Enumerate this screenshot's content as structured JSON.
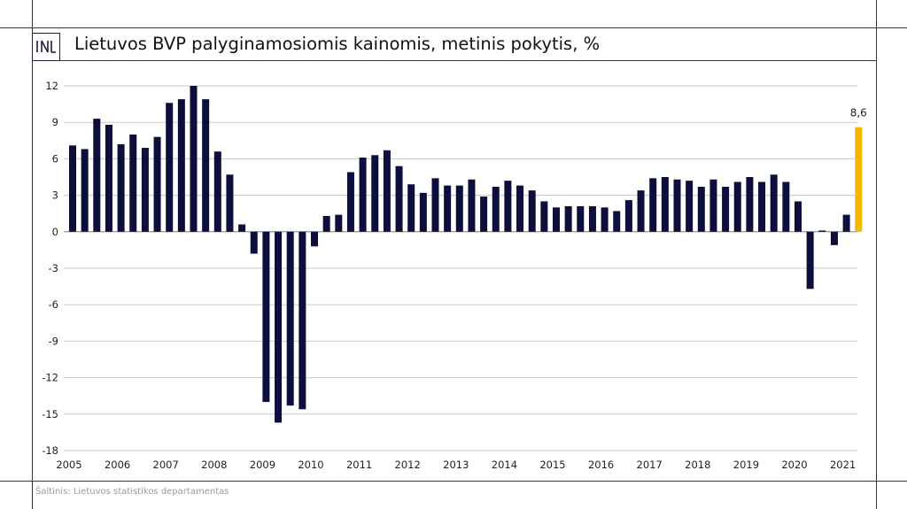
{
  "header": {
    "title": "Lietuvos BVP palyginamosiomis kainomis, metinis pokytis, %"
  },
  "footer": {
    "source": "Šaltinis: Lietuvos statistikos departamentas"
  },
  "colors": {
    "bar": "#0c0f3b",
    "highlight": "#f5b800",
    "grid": "#c8c8c8",
    "frame": "#3a3a3a"
  },
  "chart_data": {
    "type": "bar",
    "title": "Lietuvos BVP palyginamosiomis kainomis, metinis pokytis, %",
    "ylim": [
      -18,
      12
    ],
    "yticks": [
      12,
      9,
      6,
      3,
      0,
      -3,
      -6,
      -9,
      -12,
      -15,
      -18
    ],
    "grid": true,
    "year_labels": [
      "2005",
      "2006",
      "2007",
      "2008",
      "2009",
      "2010",
      "2011",
      "2012",
      "2013",
      "2014",
      "2015",
      "2016",
      "2017",
      "2018",
      "2019",
      "2020",
      "2021"
    ],
    "categories": [
      "2005 Q1",
      "2005 Q2",
      "2005 Q3",
      "2005 Q4",
      "2006 Q1",
      "2006 Q2",
      "2006 Q3",
      "2006 Q4",
      "2007 Q1",
      "2007 Q2",
      "2007 Q3",
      "2007 Q4",
      "2008 Q1",
      "2008 Q2",
      "2008 Q3",
      "2008 Q4",
      "2009 Q1",
      "2009 Q2",
      "2009 Q3",
      "2009 Q4",
      "2010 Q1",
      "2010 Q2",
      "2010 Q3",
      "2010 Q4",
      "2011 Q1",
      "2011 Q2",
      "2011 Q3",
      "2011 Q4",
      "2012 Q1",
      "2012 Q2",
      "2012 Q3",
      "2012 Q4",
      "2013 Q1",
      "2013 Q2",
      "2013 Q3",
      "2013 Q4",
      "2014 Q1",
      "2014 Q2",
      "2014 Q3",
      "2014 Q4",
      "2015 Q1",
      "2015 Q2",
      "2015 Q3",
      "2015 Q4",
      "2016 Q1",
      "2016 Q2",
      "2016 Q3",
      "2016 Q4",
      "2017 Q1",
      "2017 Q2",
      "2017 Q3",
      "2017 Q4",
      "2018 Q1",
      "2018 Q2",
      "2018 Q3",
      "2018 Q4",
      "2019 Q1",
      "2019 Q2",
      "2019 Q3",
      "2019 Q4",
      "2020 Q1",
      "2020 Q2",
      "2020 Q3",
      "2020 Q4",
      "2021 Q1",
      "2021 Q2"
    ],
    "values": [
      7.1,
      6.8,
      9.3,
      8.8,
      7.2,
      8.0,
      6.9,
      7.8,
      10.6,
      10.9,
      12.0,
      10.9,
      6.6,
      4.7,
      0.6,
      -1.8,
      -14.0,
      -15.7,
      -14.3,
      -14.6,
      -1.2,
      1.3,
      1.4,
      4.9,
      6.1,
      6.3,
      6.7,
      5.4,
      3.9,
      3.2,
      4.4,
      3.8,
      3.8,
      4.3,
      2.9,
      3.7,
      4.2,
      3.8,
      3.4,
      2.5,
      2.0,
      2.1,
      2.1,
      2.1,
      2.0,
      1.7,
      2.6,
      3.4,
      4.4,
      4.5,
      4.3,
      4.2,
      3.7,
      4.3,
      3.7,
      4.1,
      4.5,
      4.1,
      4.7,
      4.1,
      2.5,
      -4.7,
      0.1,
      -1.1,
      1.4,
      8.6
    ],
    "highlight_index": 65,
    "data_labels": [
      {
        "index": 65,
        "text": "8,6"
      }
    ]
  }
}
